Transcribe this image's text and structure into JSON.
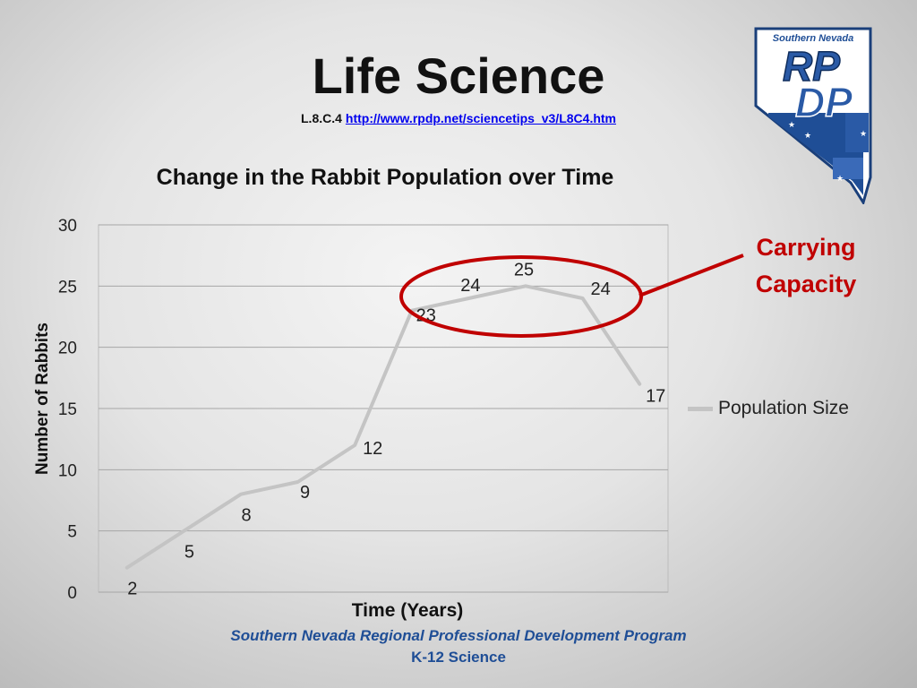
{
  "slide": {
    "title": "Life Science",
    "ref_code": "L.8.C.4",
    "ref_link": "http://www.rpdp.net/sciencetips_v3/L8C4.htm"
  },
  "logo": {
    "top_text": "Southern Nevada",
    "letters_1": "RP",
    "letters_2": "DP"
  },
  "callout": {
    "line1": "Carrying",
    "line2": "Capacity",
    "color": "#c00000"
  },
  "footer": {
    "line1": "Southern Nevada Regional Professional Development Program",
    "line2": "K-12 Science",
    "color": "#1f4e96"
  },
  "chart_data": {
    "type": "line",
    "title": "Change in the Rabbit Population over Time",
    "xlabel": "Time (Years)",
    "ylabel": "Number of Rabbits",
    "ylim": [
      0,
      30
    ],
    "yticks": [
      0,
      5,
      10,
      15,
      20,
      25,
      30
    ],
    "grid": true,
    "legend_position": "right",
    "series": [
      {
        "name": "Population Size",
        "color": "#c4c4c4",
        "values": [
          2,
          5,
          8,
          9,
          12,
          23,
          24,
          25,
          24,
          17
        ]
      }
    ]
  }
}
